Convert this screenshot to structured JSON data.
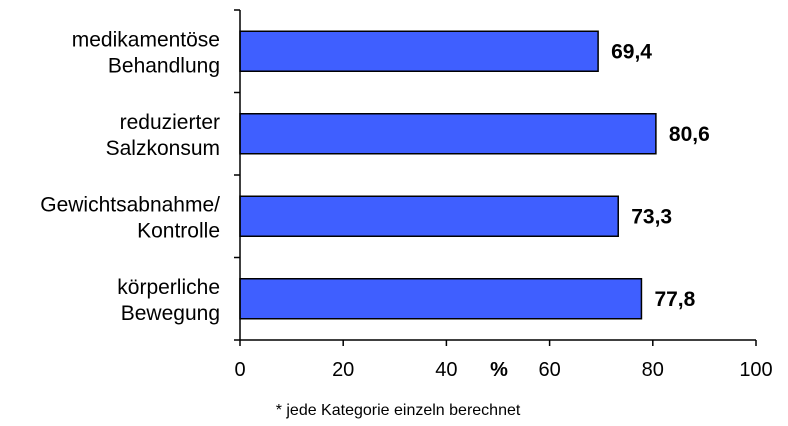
{
  "chart_data": {
    "type": "bar",
    "orientation": "horizontal",
    "categories": [
      [
        "medikamentöse",
        "Behandlung"
      ],
      [
        "reduzierter",
        "Salzkonsum"
      ],
      [
        "Gewichtsabnahme/",
        "Kontrolle"
      ],
      [
        "körperliche",
        "Bewegung"
      ]
    ],
    "values": [
      69.4,
      80.6,
      73.3,
      77.8
    ],
    "value_labels": [
      "69,4",
      "80,6",
      "73,3",
      "77,8"
    ],
    "xlim": [
      0,
      100
    ],
    "xticks": [
      0,
      20,
      40,
      60,
      80,
      100
    ],
    "xtick_labels": [
      "0",
      "20",
      "40",
      "60",
      "80",
      "100"
    ],
    "xlabel": "%",
    "footnote": "* jede Kategorie einzeln berechnet",
    "bar_color": "#3f5fff",
    "grid": false,
    "legend": "none"
  }
}
